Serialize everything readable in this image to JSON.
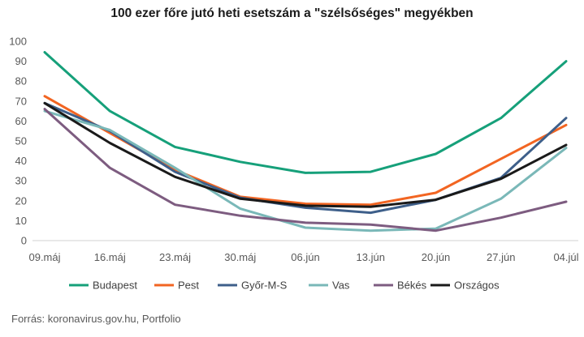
{
  "chart_data": {
    "type": "line",
    "title": "100 ezer főre jutó heti esetszám a \"szélsőséges\" megyékben",
    "categories": [
      "09.máj",
      "16.máj",
      "23.máj",
      "30.máj",
      "06.jún",
      "13.jún",
      "20.jún",
      "27.jún",
      "04.júl"
    ],
    "ylim": [
      0,
      100
    ],
    "yticks": [
      0,
      10,
      20,
      30,
      40,
      50,
      60,
      70,
      80,
      90,
      100
    ],
    "grid": false,
    "legend_position": "bottom",
    "series": [
      {
        "name": "Budapest",
        "color": "#16a07a",
        "values": [
          94.5,
          65,
          47,
          39.5,
          34,
          34.5,
          43.5,
          61.5,
          90
        ]
      },
      {
        "name": "Pest",
        "color": "#f26522",
        "values": [
          72.5,
          54,
          35.5,
          22,
          18.5,
          18,
          24,
          41,
          58
        ]
      },
      {
        "name": "Győr-M-S",
        "color": "#3e5f8a",
        "values": [
          69,
          55,
          34.5,
          21.5,
          16.5,
          14,
          20.5,
          31.5,
          61.5
        ]
      },
      {
        "name": "Vas",
        "color": "#7ab8b8",
        "values": [
          65,
          55.5,
          36.5,
          16,
          6.5,
          5,
          6,
          21,
          46.5
        ]
      },
      {
        "name": "Békés",
        "color": "#7d5c80",
        "values": [
          66,
          36.5,
          18,
          12.5,
          9,
          8,
          5,
          11.5,
          19.5
        ]
      },
      {
        "name": "Országos",
        "color": "#1a1a1a",
        "values": [
          69,
          49,
          32,
          21,
          17.5,
          17,
          20.5,
          31,
          48
        ]
      }
    ]
  },
  "source_text": "Forrás: koronavirus.gov.hu, Portfolio"
}
